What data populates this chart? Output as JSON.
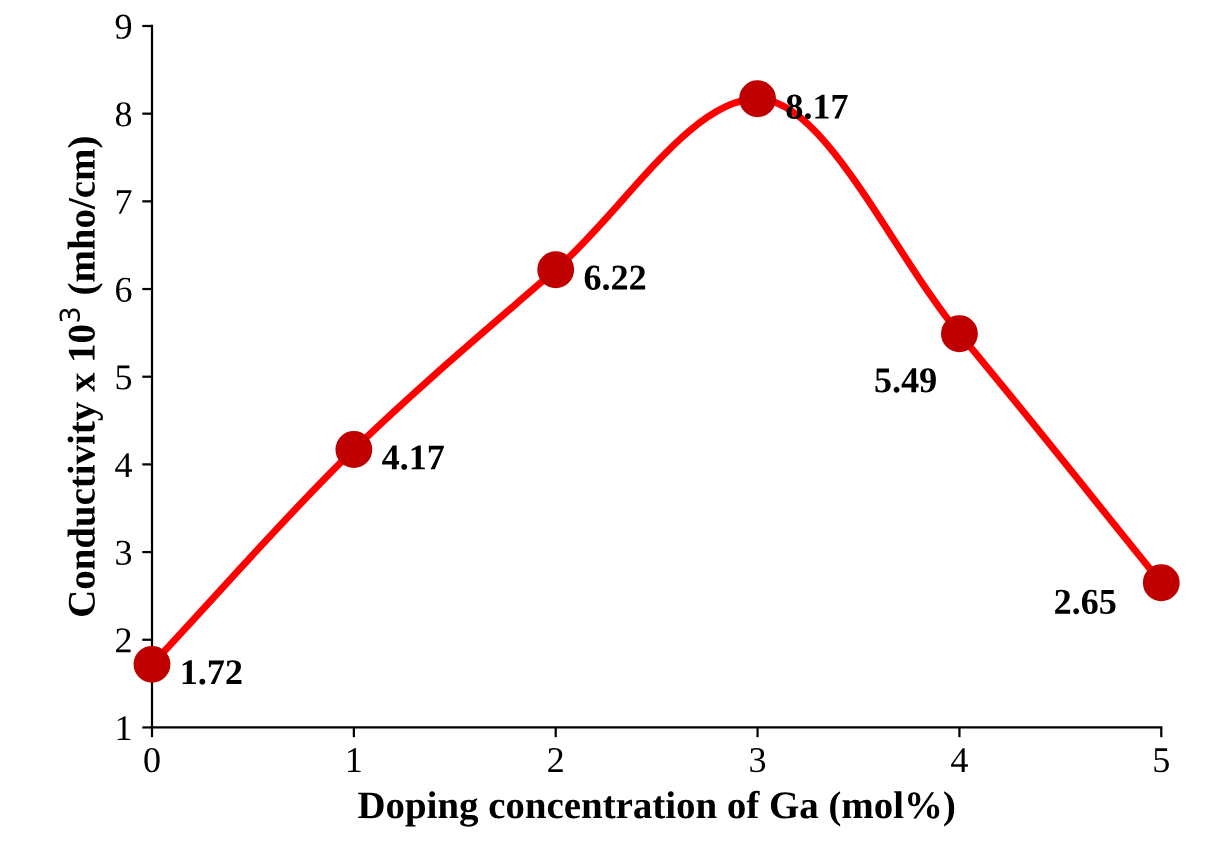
{
  "chart_data": {
    "type": "line",
    "xlabel": "Doping concentration of Ga (mol%)",
    "ylabel": "Conductivity x 10$^{3}$ (mho/cm)",
    "x": [
      0,
      1,
      2,
      3,
      4,
      5
    ],
    "series": [
      {
        "color": "#ff0000",
        "colors": [
          "#c00000",
          "#c00000",
          "#c00000",
          "#c00000",
          "#c00000",
          "#c00000"
        ],
        "values": [
          1.72,
          4.17,
          6.22,
          8.17,
          5.49,
          2.65
        ]
      }
    ],
    "xlim": [
      0,
      5
    ],
    "xticks": [
      0,
      1,
      2,
      3,
      4,
      5
    ],
    "ylim": [
      1,
      9
    ],
    "yticks": [
      1,
      2,
      3,
      4,
      5,
      6,
      7,
      8,
      9
    ],
    "grid": false,
    "marker": "circle",
    "line_style": "solid",
    "data_labels": true
  }
}
